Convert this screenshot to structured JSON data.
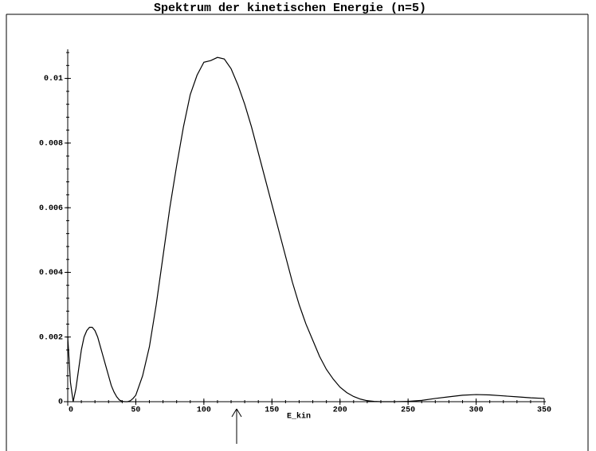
{
  "chart_data": {
    "type": "line",
    "title": "Spektrum der kinetischen Energie (n=5)",
    "xlabel": "E_kin",
    "color": "#000000",
    "x": [
      0,
      2,
      4,
      6,
      8,
      10,
      12,
      14,
      16,
      18,
      20,
      22,
      24,
      26,
      28,
      30,
      32,
      34,
      36,
      38,
      40,
      42,
      44,
      46,
      48,
      50,
      55,
      60,
      65,
      70,
      75,
      80,
      85,
      90,
      95,
      100,
      105,
      110,
      115,
      120,
      125,
      130,
      135,
      140,
      145,
      150,
      155,
      160,
      165,
      170,
      175,
      180,
      185,
      190,
      195,
      200,
      205,
      210,
      215,
      220,
      225,
      230,
      235,
      240,
      250,
      260,
      270,
      280,
      290,
      300,
      310,
      320,
      330,
      340,
      350
    ],
    "values": [
      0.002,
      0.0006,
      0,
      0.0004,
      0.001,
      0.0016,
      0.002,
      0.0022,
      0.0023,
      0.0023,
      0.0022,
      0.002,
      0.0017,
      0.0014,
      0.0011,
      0.0008,
      0.0005,
      0.0003,
      0.00015,
      5e-05,
      1e-05,
      0,
      0,
      3e-05,
      0.0001,
      0.0002,
      0.0008,
      0.0017,
      0.003,
      0.0045,
      0.006,
      0.0073,
      0.0085,
      0.0095,
      0.0101,
      0.0105,
      0.01055,
      0.01065,
      0.0106,
      0.0103,
      0.0098,
      0.0092,
      0.0085,
      0.0077,
      0.0069,
      0.0061,
      0.0053,
      0.0045,
      0.0037,
      0.003,
      0.0024,
      0.0019,
      0.0014,
      0.001,
      0.0007,
      0.00045,
      0.00028,
      0.00016,
      8e-05,
      3e-05,
      1e-05,
      0,
      0,
      0,
      1e-05,
      4e-05,
      0.0001,
      0.00015,
      0.0002,
      0.00022,
      0.00021,
      0.00018,
      0.00015,
      0.00012,
      0.0001
    ],
    "xlim": [
      0,
      350
    ],
    "ylim": [
      0,
      0.0109
    ],
    "xticks": [
      0,
      50,
      100,
      150,
      200,
      250,
      300,
      350
    ],
    "yticks": [
      0,
      0.002,
      0.004,
      0.006,
      0.008,
      0.01
    ]
  }
}
